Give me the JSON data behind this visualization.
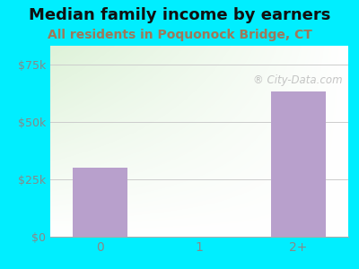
{
  "title": "Median family income by earners",
  "subtitle": "All residents in Poquonock Bridge, CT",
  "categories": [
    "0",
    "1",
    "2+"
  ],
  "values": [
    30000,
    0,
    63000
  ],
  "bar_color": "#b8a0cc",
  "title_fontsize": 13,
  "subtitle_fontsize": 10,
  "subtitle_color": "#a07858",
  "title_color": "#111111",
  "ylim": [
    0,
    83000
  ],
  "yticks": [
    0,
    25000,
    50000,
    75000
  ],
  "ytick_labels": [
    "$0",
    "$25k",
    "$50k",
    "$75k"
  ],
  "ytick_color": "#888888",
  "xtick_color": "#888888",
  "bg_outer": "#00eeff",
  "bg_plot_topleft": "#d8ecd0",
  "bg_plot_right": "#f5fff5",
  "bg_plot_bottom": "#e8f8f8",
  "grid_color": "#cccccc",
  "watermark": "City-Data.com"
}
